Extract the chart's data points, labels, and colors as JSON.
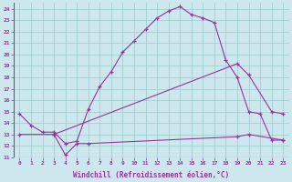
{
  "xlabel": "Windchill (Refroidissement éolien,°C)",
  "xlim": [
    -0.5,
    23.5
  ],
  "ylim": [
    11,
    24.5
  ],
  "yticks": [
    11,
    12,
    13,
    14,
    15,
    16,
    17,
    18,
    19,
    20,
    21,
    22,
    23,
    24
  ],
  "xticks": [
    0,
    1,
    2,
    3,
    4,
    5,
    6,
    7,
    8,
    9,
    10,
    11,
    12,
    13,
    14,
    15,
    16,
    17,
    18,
    19,
    20,
    21,
    22,
    23
  ],
  "bg_color": "#cce8ee",
  "line_color": "#993399",
  "grid_color": "#99cccc",
  "line1_x": [
    0,
    1,
    2,
    3,
    4,
    5,
    6,
    7,
    8,
    9,
    10,
    11,
    12,
    13,
    14,
    15,
    16,
    17,
    18,
    19,
    20,
    21,
    22,
    23
  ],
  "line1_y": [
    14.8,
    13.8,
    13.2,
    13.2,
    12.2,
    12.4,
    15.2,
    17.2,
    18.5,
    20.2,
    21.2,
    22.2,
    23.2,
    23.8,
    24.2,
    23.5,
    23.2,
    22.8,
    19.5,
    18.0,
    15.0,
    14.8,
    12.5,
    12.5
  ],
  "line2_x": [
    0,
    3,
    19,
    20,
    22,
    23
  ],
  "line2_y": [
    13.0,
    13.0,
    19.2,
    18.2,
    15.0,
    14.8
  ],
  "line3_x": [
    3,
    4,
    5,
    6,
    19,
    20,
    23
  ],
  "line3_y": [
    13.0,
    11.2,
    12.2,
    12.2,
    12.8,
    13.0,
    12.5
  ]
}
